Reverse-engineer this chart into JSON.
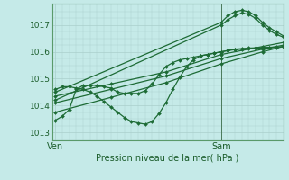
{
  "bg_color": "#c5eae8",
  "grid_color": "#aacfcc",
  "line_color": "#1d6b35",
  "xlabel_text": "Pression niveau de la mer( hPa )",
  "xtick_labels": [
    "Ven",
    "Sam"
  ],
  "xtick_positions": [
    0,
    24
  ],
  "ylim": [
    1012.7,
    1017.8
  ],
  "xlim": [
    -0.5,
    33
  ],
  "yticks": [
    1013,
    1014,
    1015,
    1016,
    1017
  ],
  "vline_x": 24,
  "series": [
    {
      "x": [
        0,
        8,
        16,
        24,
        30,
        33
      ],
      "y": [
        1013.75,
        1014.3,
        1014.85,
        1015.55,
        1016.0,
        1016.2
      ],
      "marker": "D",
      "ms": 2.0,
      "lw": 0.9
    },
    {
      "x": [
        0,
        8,
        16,
        24,
        30,
        33
      ],
      "y": [
        1014.1,
        1014.6,
        1015.1,
        1015.75,
        1016.1,
        1016.25
      ],
      "marker": "D",
      "ms": 2.0,
      "lw": 0.9
    },
    {
      "x": [
        0,
        8,
        16,
        24,
        30,
        33
      ],
      "y": [
        1014.35,
        1014.8,
        1015.25,
        1015.9,
        1016.2,
        1016.35
      ],
      "marker": "D",
      "ms": 2.0,
      "lw": 0.9
    },
    {
      "x": [
        0,
        1,
        2,
        3,
        4,
        5,
        6,
        7,
        8,
        9,
        10,
        11,
        12,
        13,
        14,
        15,
        16,
        17,
        18,
        19,
        20,
        21,
        22,
        23,
        24,
        25,
        26,
        27,
        28,
        29,
        30,
        31,
        32,
        33
      ],
      "y": [
        1014.6,
        1014.7,
        1014.7,
        1014.65,
        1014.6,
        1014.5,
        1014.35,
        1014.15,
        1013.95,
        1013.75,
        1013.55,
        1013.4,
        1013.35,
        1013.3,
        1013.4,
        1013.7,
        1014.1,
        1014.6,
        1015.05,
        1015.45,
        1015.7,
        1015.85,
        1015.9,
        1015.95,
        1016.0,
        1016.05,
        1016.1,
        1016.12,
        1016.14,
        1016.15,
        1016.16,
        1016.17,
        1016.18,
        1016.2
      ],
      "marker": "D",
      "ms": 2.0,
      "lw": 0.9
    },
    {
      "x": [
        0,
        1,
        2,
        3,
        4,
        5,
        6,
        7,
        8,
        9,
        10,
        11,
        12,
        13,
        14,
        15,
        16,
        17,
        18,
        19,
        20,
        21,
        22,
        23,
        24,
        25,
        26,
        27,
        28,
        29,
        30,
        31,
        32
      ],
      "y": [
        1013.45,
        1013.6,
        1013.85,
        1014.6,
        1014.75,
        1014.75,
        1014.75,
        1014.7,
        1014.65,
        1014.5,
        1014.45,
        1014.45,
        1014.45,
        1014.55,
        1014.8,
        1015.15,
        1015.45,
        1015.6,
        1015.7,
        1015.75,
        1015.8,
        1015.85,
        1015.9,
        1015.95,
        1016.0,
        1016.05,
        1016.08,
        1016.1,
        1016.12,
        1016.13,
        1016.14,
        1016.15,
        1016.16
      ],
      "marker": "D",
      "ms": 2.0,
      "lw": 0.9
    },
    {
      "x": [
        0,
        24,
        25,
        26,
        27,
        28,
        29,
        30,
        31,
        32,
        33
      ],
      "y": [
        1014.2,
        1017.0,
        1017.2,
        1017.35,
        1017.45,
        1017.4,
        1017.25,
        1017.0,
        1016.8,
        1016.65,
        1016.55
      ],
      "marker": "D",
      "ms": 2.0,
      "lw": 0.9
    },
    {
      "x": [
        0,
        24,
        25,
        26,
        27,
        28,
        29,
        30,
        31,
        32,
        33
      ],
      "y": [
        1014.5,
        1017.1,
        1017.35,
        1017.5,
        1017.55,
        1017.5,
        1017.35,
        1017.1,
        1016.9,
        1016.75,
        1016.6
      ],
      "marker": "D",
      "ms": 2.0,
      "lw": 0.9
    }
  ]
}
